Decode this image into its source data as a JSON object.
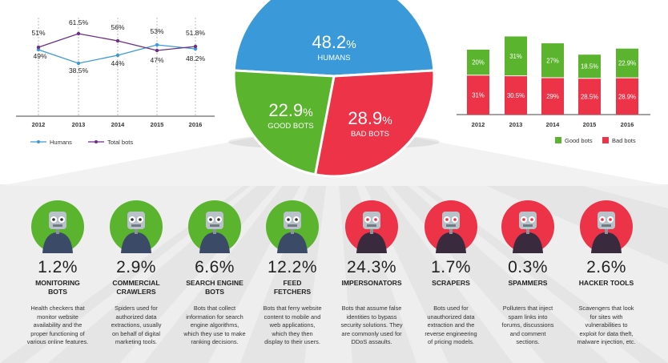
{
  "chart_data": [
    {
      "type": "line",
      "x": [
        "2012",
        "2013",
        "2014",
        "2015",
        "2016"
      ],
      "series": [
        {
          "name": "Humans",
          "color": "#3a9ad9",
          "values": [
            49,
            38.5,
            44,
            53,
            48.2
          ],
          "labels": [
            "49%",
            "38.5%",
            "44%",
            "53%",
            "48.2%"
          ]
        },
        {
          "name": "Total bots",
          "color": "#6b2e84",
          "values": [
            51,
            61.5,
            56,
            47,
            51.8
          ],
          "labels": [
            "51%",
            "61.5%",
            "56%",
            "47%",
            "51.8%"
          ]
        }
      ],
      "ylim": [
        30,
        70
      ]
    },
    {
      "type": "pie",
      "slices": [
        {
          "label": "HUMANS",
          "value": 48.2,
          "value_text": "48.2",
          "unit": "%",
          "color": "#3a9ad9"
        },
        {
          "label": "BAD BOTS",
          "value": 28.9,
          "value_text": "28.9",
          "unit": "%",
          "color": "#ec3347"
        },
        {
          "label": "GOOD BOTS",
          "value": 22.9,
          "value_text": "22.9",
          "unit": "%",
          "color": "#5ab42e"
        }
      ]
    },
    {
      "type": "bar",
      "stacked": true,
      "categories": [
        "2012",
        "2013",
        "2014",
        "2015",
        "2016"
      ],
      "series": [
        {
          "name": "Bad bots",
          "color": "#ec3347",
          "values": [
            31,
            30.5,
            29,
            28.5,
            28.9
          ],
          "labels": [
            "31%",
            "30.5%",
            "29%",
            "28.5%",
            "28.9%"
          ]
        },
        {
          "name": "Good bots",
          "color": "#5ab42e",
          "values": [
            20,
            31,
            27,
            18.5,
            22.9
          ],
          "labels": [
            "20%",
            "31%",
            "27%",
            "18.5%",
            "22.9%"
          ]
        }
      ],
      "legend": [
        "Good bots",
        "Bad bots"
      ],
      "ylim": [
        0,
        70
      ]
    }
  ],
  "bots": [
    {
      "pct": "1.2%",
      "name": [
        "MONITORING",
        "BOTS"
      ],
      "desc": [
        "Health checkers that",
        "monitor website",
        "availability and the",
        "proper functioning of",
        "various online features."
      ],
      "color": "#5ab42e"
    },
    {
      "pct": "2.9%",
      "name": [
        "COMMERCIAL",
        "CRAWLERS"
      ],
      "desc": [
        "Spiders used for",
        "authorized data",
        "extractions, usually",
        "on behalf of digital",
        "marketing tools."
      ],
      "color": "#5ab42e"
    },
    {
      "pct": "6.6%",
      "name": [
        "SEARCH ENGINE",
        "BOTS"
      ],
      "desc": [
        "Bots that collect",
        "information for search",
        "engine algorithms,",
        "which they use to make",
        "ranking decisions."
      ],
      "color": "#5ab42e"
    },
    {
      "pct": "12.2%",
      "name": [
        "FEED",
        "FETCHERS"
      ],
      "desc": [
        "Bots that ferry website",
        "content to mobile and",
        "web applications,",
        "which they then",
        "display to their users."
      ],
      "color": "#5ab42e"
    },
    {
      "pct": "24.3%",
      "name": [
        "IMPERSONATORS"
      ],
      "desc": [
        "Bots that assume false",
        "identities to bypass",
        "security solutions. They",
        "are commonly used for",
        "DDoS assaults."
      ],
      "color": "#ec3347"
    },
    {
      "pct": "1.7%",
      "name": [
        "SCRAPERS"
      ],
      "desc": [
        "Bots used for",
        "unauthorized data",
        "extraction and the",
        "reverse engineering",
        "of pricing models."
      ],
      "color": "#ec3347"
    },
    {
      "pct": "0.3%",
      "name": [
        "SPAMMERS"
      ],
      "desc": [
        "Polluters that inject",
        "spam links into",
        "forums, discussions",
        "and comment",
        "sections."
      ],
      "color": "#ec3347"
    },
    {
      "pct": "2.6%",
      "name": [
        "HACKER TOOLS"
      ],
      "desc": [
        "Scavengers that look",
        "for sites with",
        "vulnerabilities to",
        "exploit for data theft,",
        "malware injection, etc."
      ],
      "color": "#ec3347"
    }
  ]
}
